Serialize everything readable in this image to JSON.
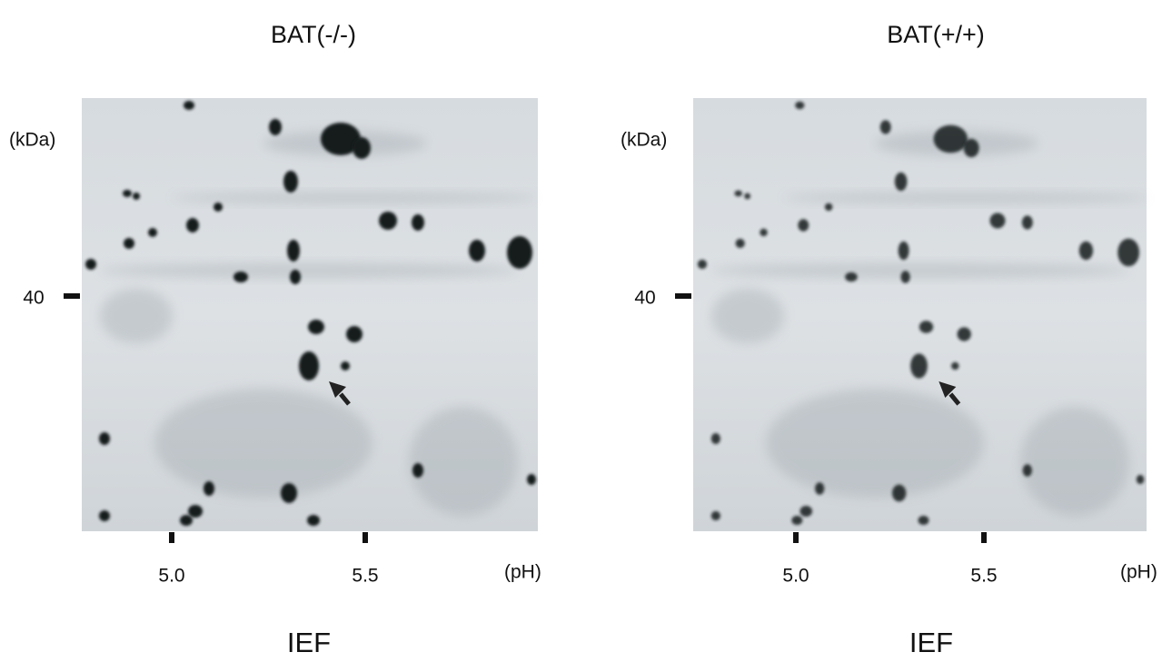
{
  "panels": [
    {
      "title": "BAT(-/-)",
      "y_unit": "(kDa)",
      "y_tick": "40",
      "x_ticks": [
        "5.0",
        "5.5"
      ],
      "x_unit": "(pH)",
      "x_label": "IEF"
    },
    {
      "title": "BAT(+/+)",
      "y_unit": "(kDa)",
      "y_tick": "40",
      "x_ticks": [
        "5.0",
        "5.5"
      ],
      "x_unit": "(pH)",
      "x_label": "IEF"
    }
  ]
}
